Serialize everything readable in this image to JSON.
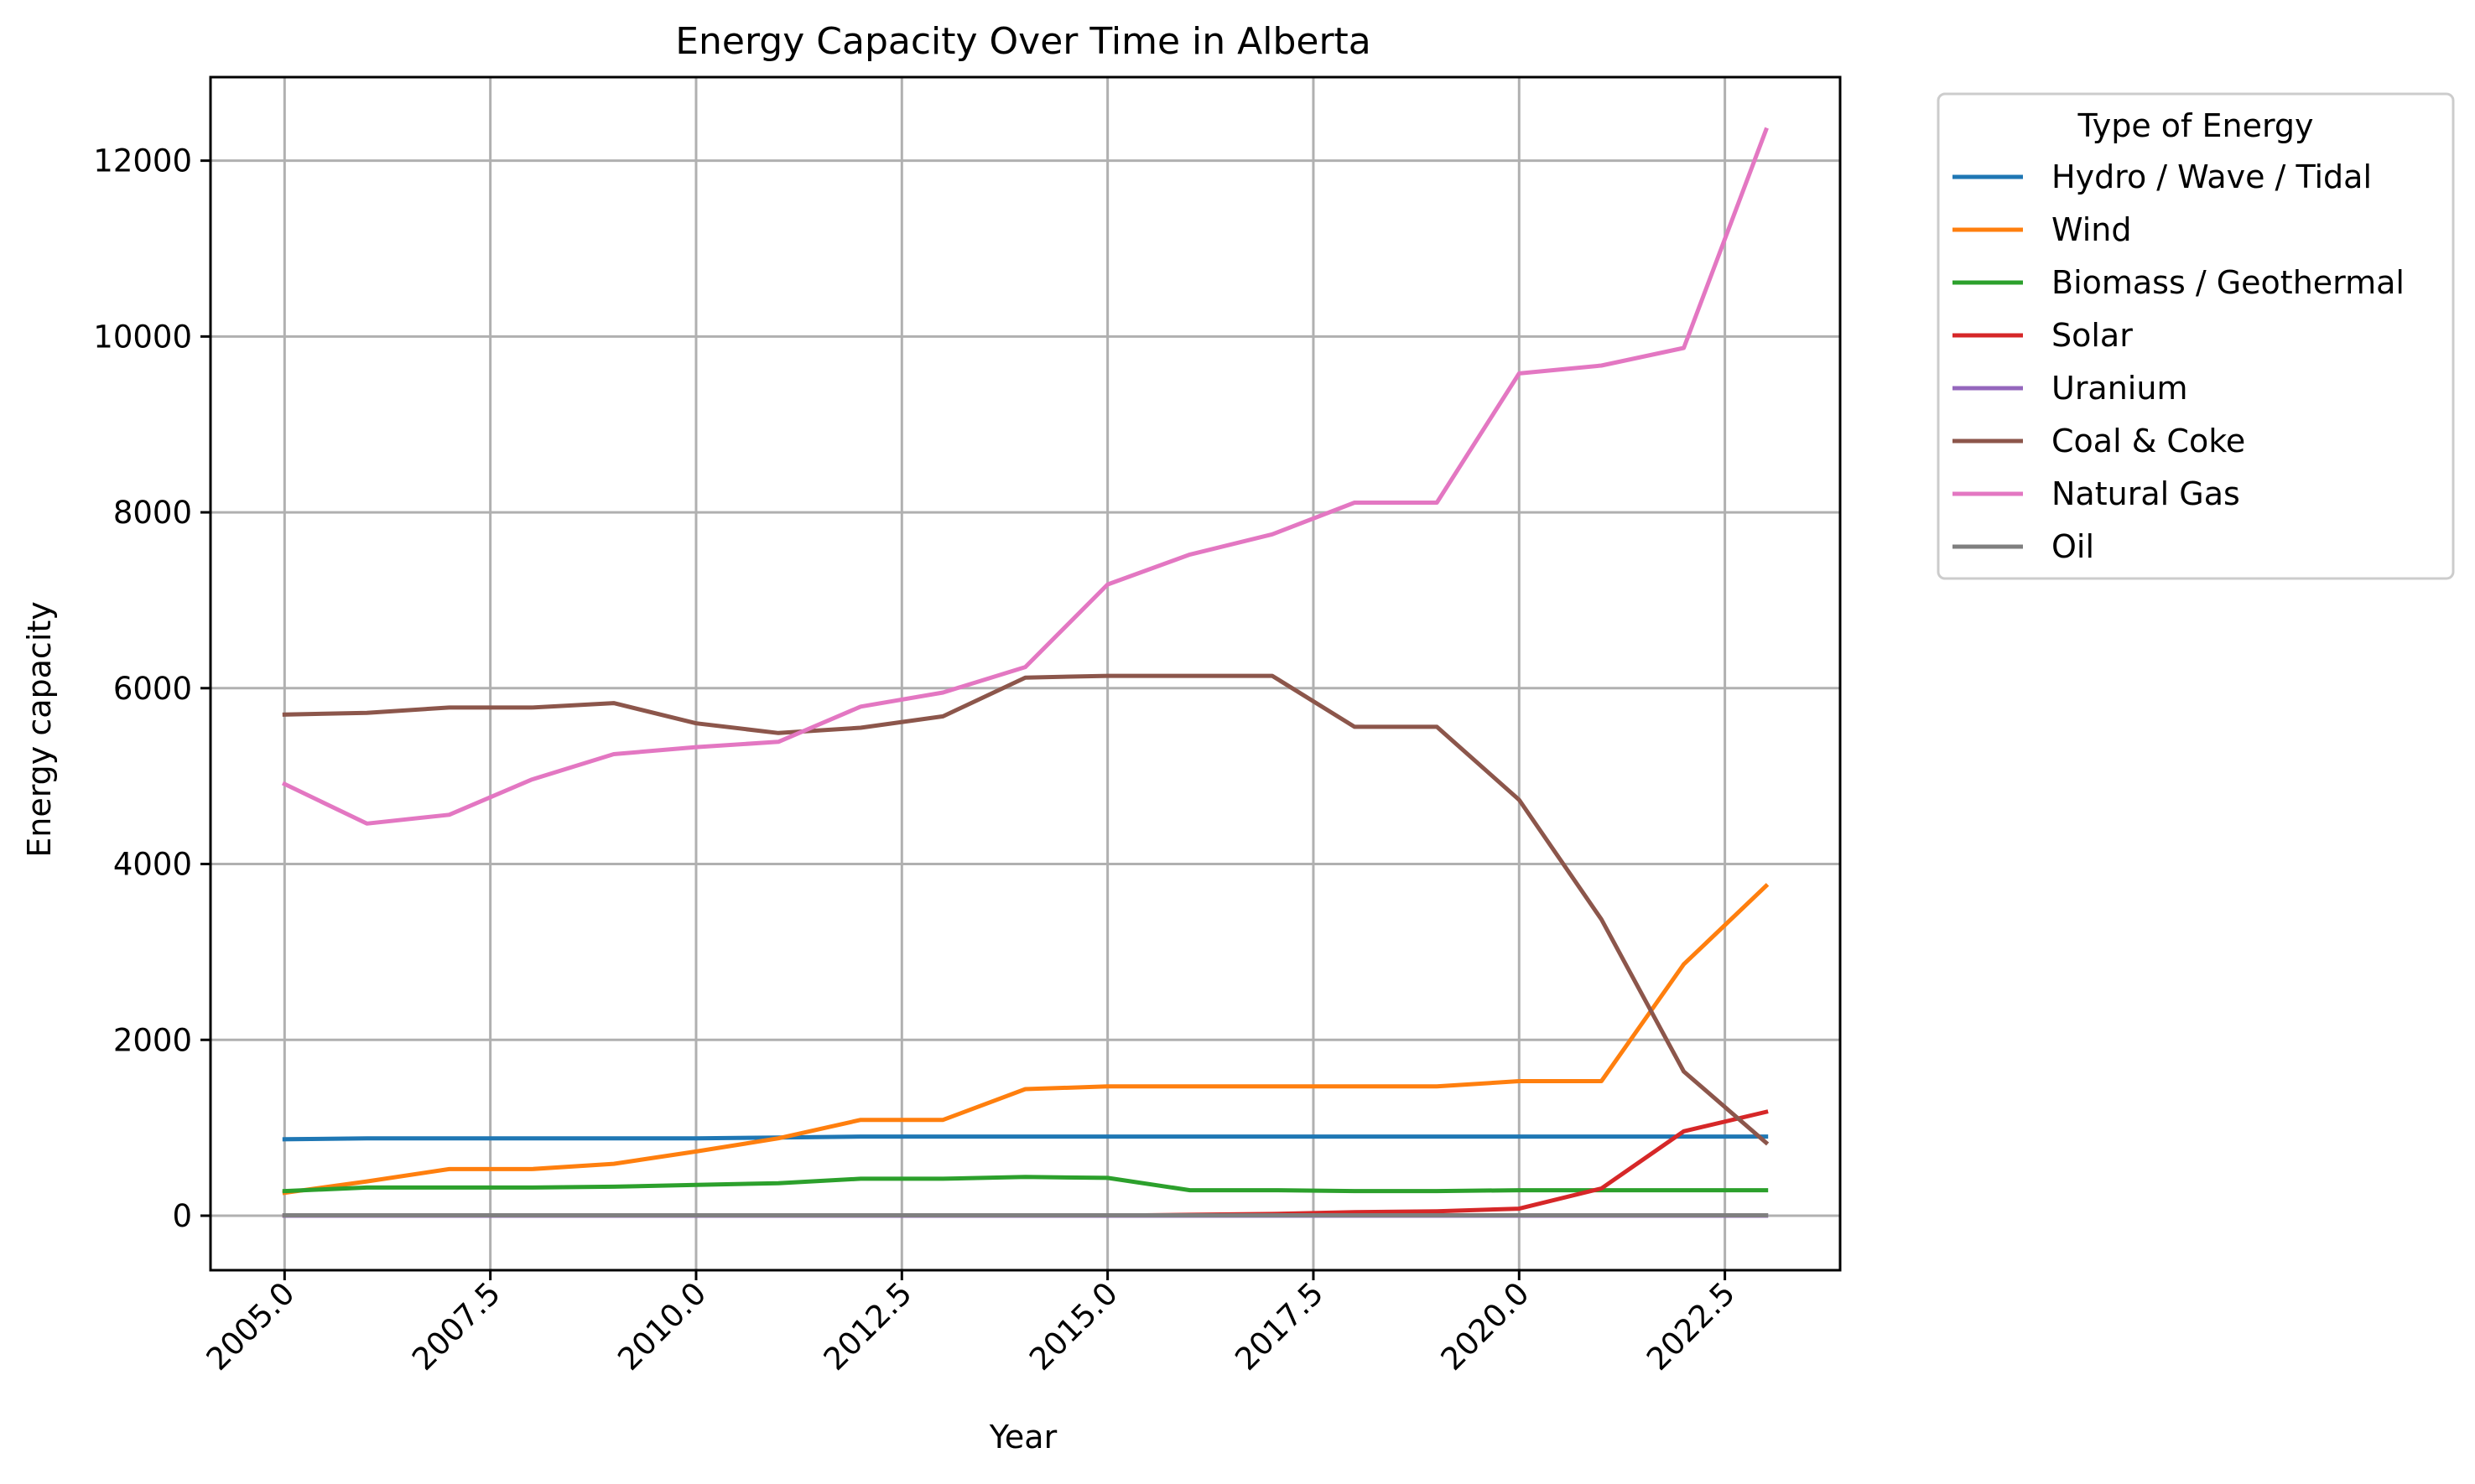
{
  "chart_data": {
    "type": "line",
    "title": "Energy Capacity Over Time in Alberta",
    "xlabel": "Year",
    "ylabel": "Energy capacity",
    "xlim": [
      2004.1,
      2023.9
    ],
    "ylim": [
      -620,
      12950
    ],
    "x_ticks": [
      2005,
      2007.5,
      2010,
      2012.5,
      2015,
      2017.5,
      2020,
      2022.5
    ],
    "x_tick_labels": [
      "2005.0",
      "2007.5",
      "2010.0",
      "2012.5",
      "2015.0",
      "2017.5",
      "2020.0",
      "2022.5"
    ],
    "y_ticks": [
      0,
      2000,
      4000,
      6000,
      8000,
      10000,
      12000
    ],
    "y_tick_labels": [
      "0",
      "2000",
      "4000",
      "6000",
      "8000",
      "10000",
      "12000"
    ],
    "grid": true,
    "legend": {
      "title": "Type of Energy",
      "placement": "outside-right-top"
    },
    "x": [
      2005,
      2006,
      2007,
      2008,
      2009,
      2010,
      2011,
      2012,
      2013,
      2014,
      2015,
      2016,
      2017,
      2018,
      2019,
      2020,
      2021,
      2022,
      2023
    ],
    "series": [
      {
        "name": "Hydro / Wave / Tidal",
        "color": "#1f77b4",
        "values": [
          870,
          880,
          880,
          880,
          880,
          880,
          890,
          900,
          900,
          900,
          900,
          900,
          900,
          900,
          900,
          900,
          900,
          900,
          900
        ]
      },
      {
        "name": "Wind",
        "color": "#ff7f0e",
        "values": [
          260,
          390,
          530,
          530,
          590,
          730,
          880,
          1090,
          1090,
          1440,
          1470,
          1470,
          1470,
          1470,
          1470,
          1530,
          1530,
          2860,
          3750
        ]
      },
      {
        "name": "Biomass / Geothermal",
        "color": "#2ca02c",
        "values": [
          280,
          320,
          320,
          320,
          330,
          350,
          370,
          420,
          420,
          440,
          430,
          290,
          290,
          280,
          280,
          290,
          290,
          290,
          290
        ]
      },
      {
        "name": "Solar",
        "color": "#d62728",
        "values": [
          0,
          0,
          0,
          0,
          0,
          0,
          0,
          0,
          0,
          0,
          0,
          10,
          20,
          40,
          50,
          80,
          310,
          960,
          1180
        ]
      },
      {
        "name": "Uranium",
        "color": "#9467bd",
        "values": [
          0,
          0,
          0,
          0,
          0,
          0,
          0,
          0,
          0,
          0,
          0,
          0,
          0,
          0,
          0,
          0,
          0,
          0,
          0
        ]
      },
      {
        "name": "Coal & Coke",
        "color": "#8c564b",
        "values": [
          5700,
          5720,
          5780,
          5780,
          5830,
          5600,
          5490,
          5550,
          5680,
          6120,
          6140,
          6140,
          6140,
          5560,
          5560,
          4730,
          3370,
          1640,
          830
        ]
      },
      {
        "name": "Natural Gas",
        "color": "#e377c2",
        "values": [
          4910,
          4460,
          4560,
          4960,
          5250,
          5330,
          5390,
          5790,
          5950,
          6240,
          7180,
          7520,
          7750,
          8110,
          8110,
          9580,
          9670,
          9870,
          12350
        ]
      },
      {
        "name": "Oil",
        "color": "#7f7f7f",
        "values": [
          5,
          5,
          5,
          5,
          5,
          5,
          5,
          5,
          5,
          5,
          5,
          5,
          5,
          5,
          5,
          5,
          5,
          5,
          5
        ]
      }
    ]
  }
}
